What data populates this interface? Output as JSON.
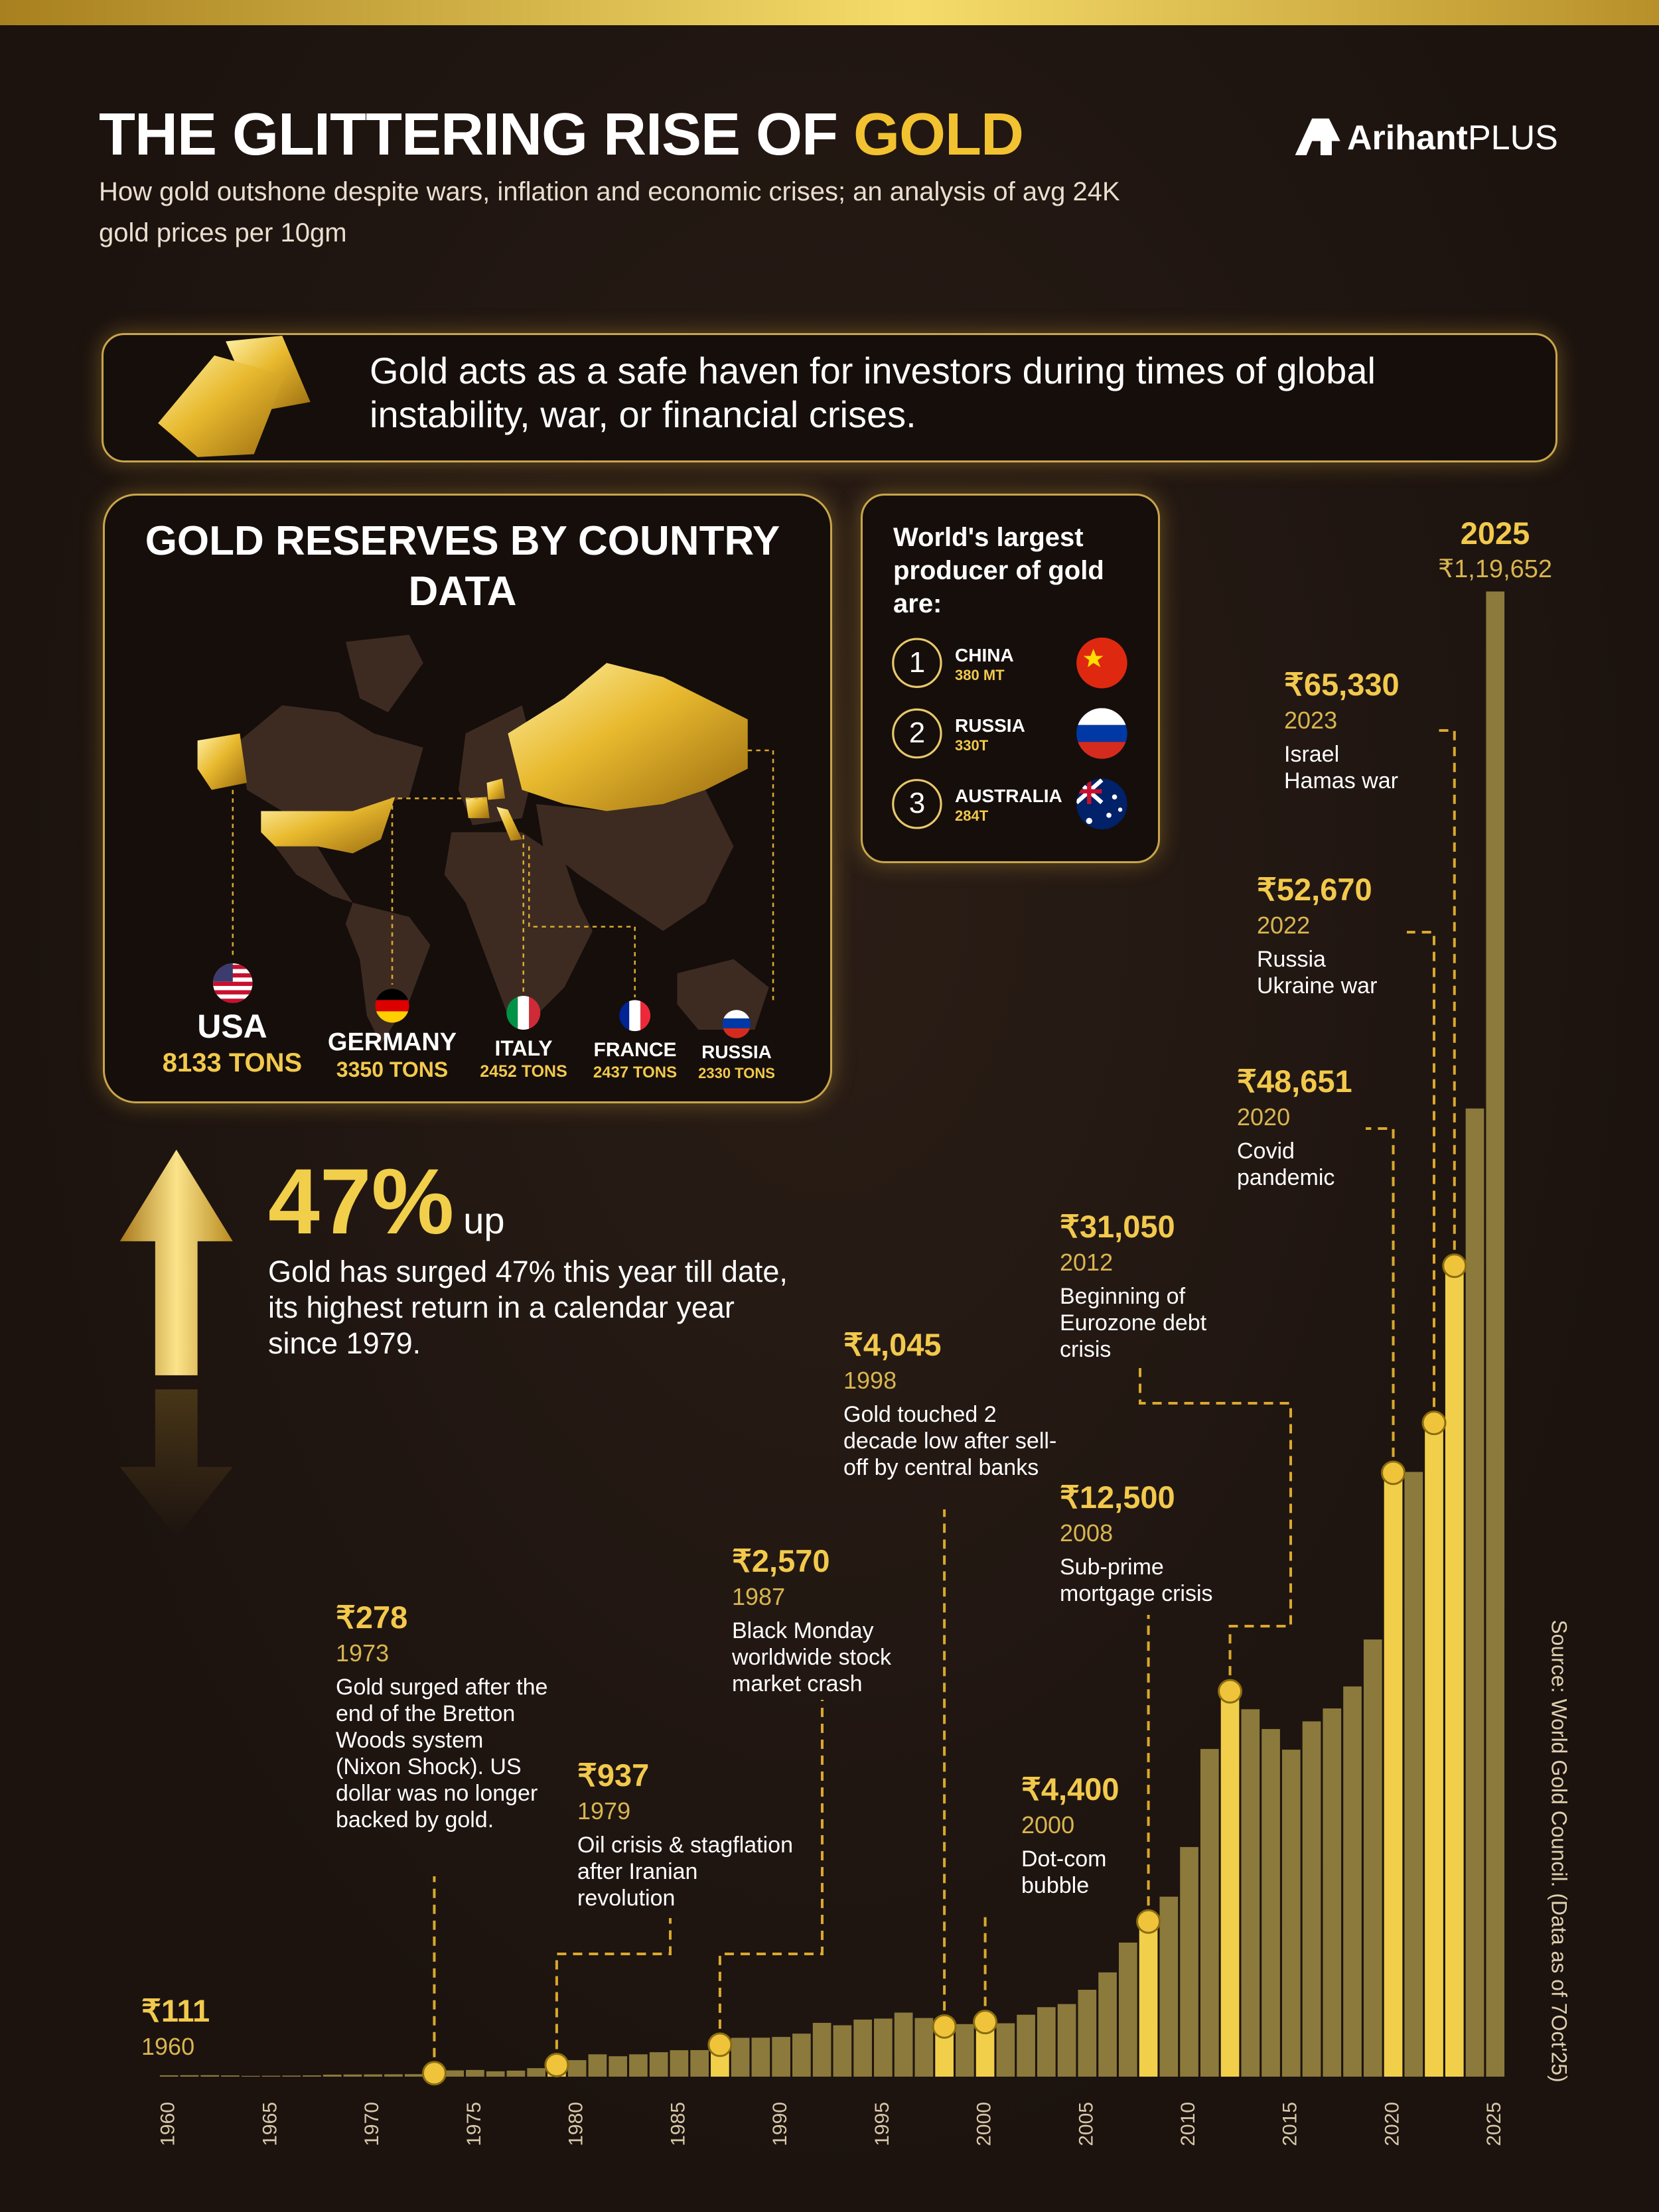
{
  "header": {
    "title": "THE GLITTERING RISE OF",
    "title_highlight": "GOLD",
    "subtitle": "How gold outshone despite wars, inflation and economic crises; an analysis of avg 24K gold prices per 10gm",
    "brand": "Arihant",
    "brand_plus": "PLUS"
  },
  "banner": "Gold acts as a safe haven for investors during times of global instability, war, or financial crises.",
  "reserves": {
    "title": "GOLD RESERVES BY COUNTRY DATA",
    "countries": [
      {
        "name": "USA",
        "amount": "8133 TONS"
      },
      {
        "name": "GERMANY",
        "amount": "3350 TONS"
      },
      {
        "name": "ITALY",
        "amount": "2452 TONS"
      },
      {
        "name": "FRANCE",
        "amount": "2437 TONS"
      },
      {
        "name": "RUSSIA",
        "amount": "2330 TONS"
      }
    ]
  },
  "producers": {
    "title": "World's largest producer of gold are:",
    "items": [
      {
        "rank": 1,
        "name": "CHINA",
        "amount": "380 MT"
      },
      {
        "rank": 2,
        "name": "RUSSIA",
        "amount": "330T"
      },
      {
        "rank": 3,
        "name": "AUSTRALIA",
        "amount": "284T"
      }
    ]
  },
  "highlight": {
    "value": "47%",
    "suffix": "up",
    "text": "Gold has surged 47% this year till date, its highest return in a calendar year since 1979."
  },
  "source": "Source: World Gold Council. (Data as of 7Oct'25)",
  "chart_data": {
    "type": "bar",
    "x": [
      1960,
      1961,
      1962,
      1963,
      1964,
      1965,
      1966,
      1967,
      1968,
      1969,
      1970,
      1971,
      1972,
      1973,
      1974,
      1975,
      1976,
      1977,
      1978,
      1979,
      1980,
      1981,
      1982,
      1983,
      1984,
      1985,
      1986,
      1987,
      1988,
      1989,
      1990,
      1991,
      1992,
      1993,
      1994,
      1995,
      1996,
      1997,
      1998,
      1999,
      2000,
      2001,
      2002,
      2003,
      2004,
      2005,
      2006,
      2007,
      2008,
      2009,
      2010,
      2011,
      2012,
      2013,
      2014,
      2015,
      2016,
      2017,
      2018,
      2019,
      2020,
      2021,
      2022,
      2023,
      2024,
      2025
    ],
    "values": [
      111,
      119,
      120,
      97,
      63,
      72,
      84,
      103,
      162,
      176,
      184,
      193,
      202,
      278,
      506,
      540,
      432,
      486,
      685,
      937,
      1330,
      1800,
      1645,
      1800,
      1970,
      2130,
      2140,
      2570,
      3130,
      3140,
      3200,
      3466,
      4334,
      4140,
      4598,
      4680,
      5160,
      4725,
      4045,
      4234,
      4400,
      4300,
      4990,
      5600,
      5850,
      7000,
      8400,
      10800,
      12500,
      14500,
      18500,
      26400,
      31050,
      29600,
      28006,
      26343,
      28623,
      29667,
      31438,
      35220,
      48651,
      48720,
      52670,
      65330,
      78000,
      119652
    ],
    "xlim": [
      1959,
      2026
    ],
    "xticks": [
      1960,
      1965,
      1970,
      1975,
      1980,
      1985,
      1990,
      1995,
      2000,
      2005,
      2010,
      2015,
      2020,
      2025
    ],
    "ylim": [
      0,
      120000
    ],
    "color": "#8b7a3b",
    "highlight_color": "#f2cf4a",
    "annotations": [
      {
        "year": 1960,
        "label": "₹111"
      },
      {
        "year": 1973,
        "label": "₹278",
        "note": "Gold surged after the end of the Bretton Woods system (Nixon Shock). US dollar was no longer backed by gold."
      },
      {
        "year": 1979,
        "label": "₹937",
        "note": "Oil crisis & stagflation after Iranian revolution"
      },
      {
        "year": 1987,
        "label": "₹2,570",
        "note": "Black Monday worldwide stock market crash"
      },
      {
        "year": 1998,
        "label": "₹4,045",
        "note": "Gold touched 2 decade low after sell-off by central banks"
      },
      {
        "year": 2000,
        "label": "₹4,400",
        "note": "Dot-com bubble"
      },
      {
        "year": 2008,
        "label": "₹12,500",
        "note": "Sub-prime mortgage crisis"
      },
      {
        "year": 2012,
        "label": "₹31,050",
        "note": "Beginning of Eurozone debt crisis"
      },
      {
        "year": 2020,
        "label": "₹48,651",
        "note": "Covid pandemic"
      },
      {
        "year": 2022,
        "label": "₹52,670",
        "note": "Russia Ukraine war"
      },
      {
        "year": 2023,
        "label": "₹65,330",
        "note": "Israel Hamas war"
      },
      {
        "year": 2025,
        "label": "₹1,19,652"
      }
    ]
  }
}
